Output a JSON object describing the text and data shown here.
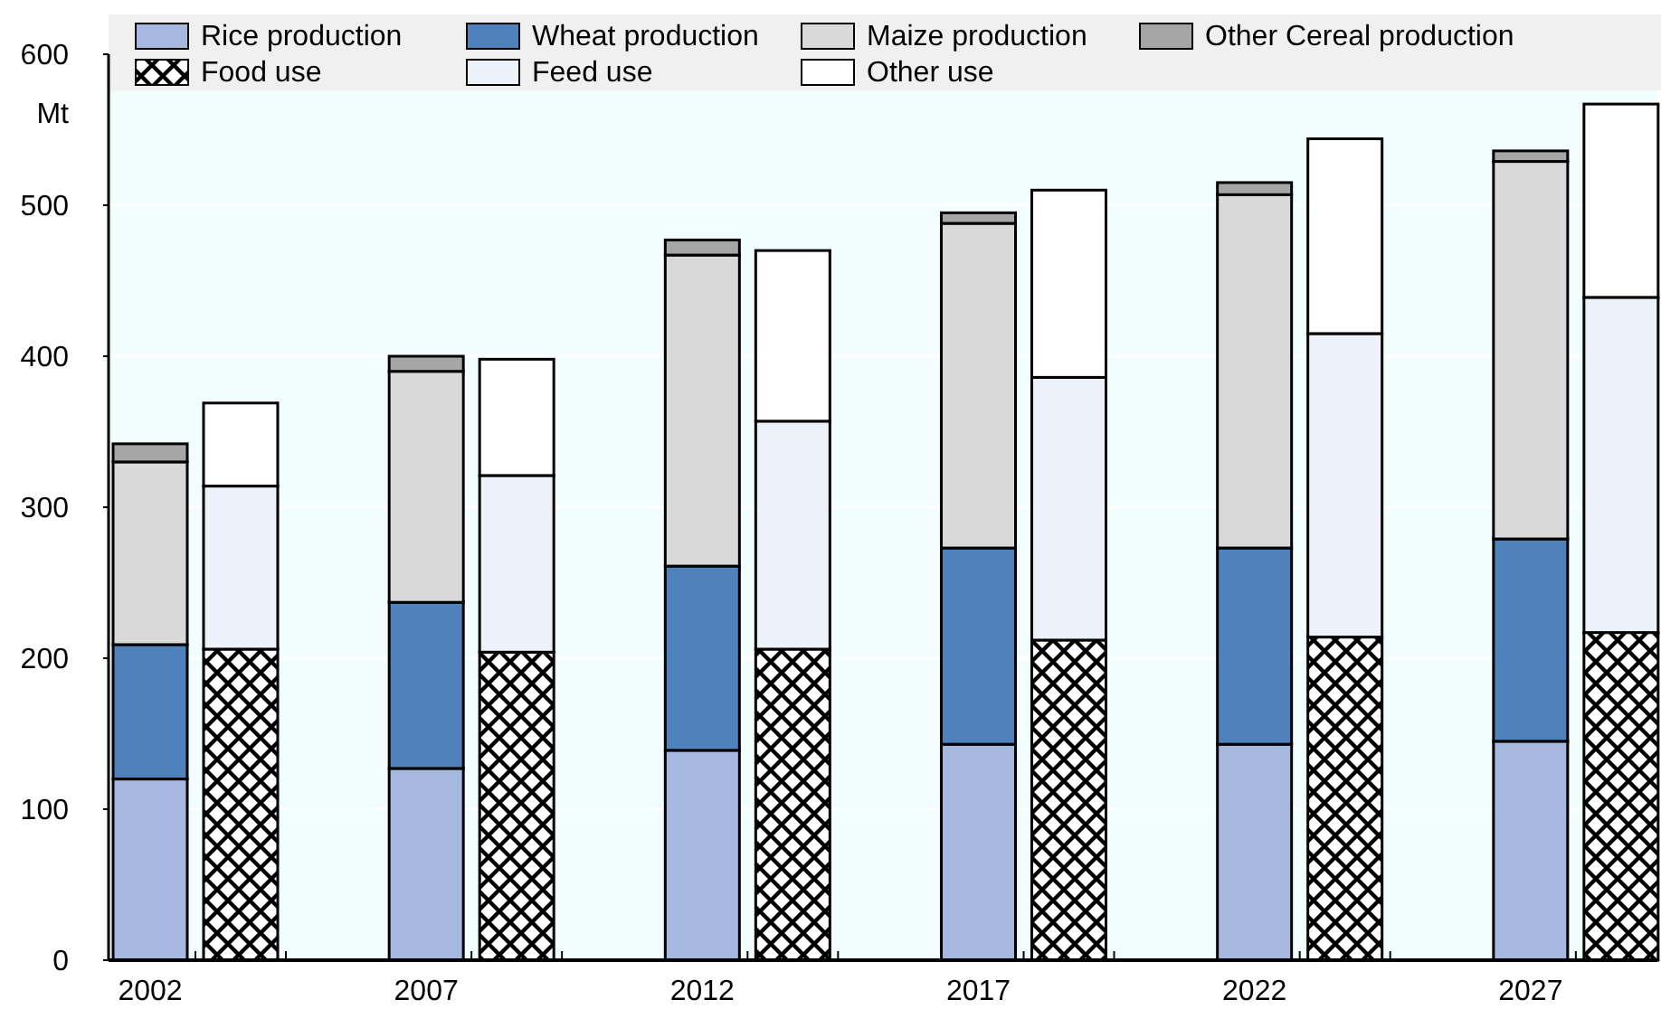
{
  "chart_data": {
    "type": "bar",
    "stacked": true,
    "ylabel": "Mt",
    "legend": "top",
    "grid": "y",
    "categories": [
      "2002",
      null,
      "2007",
      null,
      "2012",
      null,
      "2017",
      null,
      "2022",
      null,
      "2027",
      null
    ],
    "ylim": [
      0,
      600
    ],
    "yticks": [
      0,
      100,
      200,
      300,
      400,
      500,
      600
    ],
    "series": [
      {
        "name": "Rice production",
        "color": "#a7b8e0",
        "values": [
          120,
          null,
          127,
          null,
          139,
          null,
          143,
          null,
          143,
          null,
          145,
          null
        ]
      },
      {
        "name": "Wheat production",
        "color": "#4f81bd",
        "values": [
          89,
          null,
          110,
          null,
          122,
          null,
          130,
          null,
          130,
          null,
          134,
          null
        ]
      },
      {
        "name": "Maize production",
        "color": "#d9d9d9",
        "values": [
          121,
          null,
          153,
          null,
          206,
          null,
          215,
          null,
          234,
          null,
          250,
          null
        ]
      },
      {
        "name": "Other Cereal production",
        "color": "#a6a6a6",
        "values": [
          12,
          null,
          10,
          null,
          10,
          null,
          7,
          null,
          8,
          null,
          7,
          null
        ]
      },
      {
        "name": "Food use",
        "color": "#000000",
        "values": [
          null,
          206,
          null,
          204,
          null,
          206,
          null,
          212,
          null,
          214,
          null,
          217
        ]
      },
      {
        "name": "Feed use",
        "color": "#edf1f9",
        "values": [
          null,
          108,
          null,
          117,
          null,
          151,
          null,
          174,
          null,
          201,
          null,
          222
        ]
      },
      {
        "name": "Other use",
        "color": "#ffffff",
        "values": [
          null,
          55,
          null,
          77,
          null,
          113,
          null,
          124,
          null,
          129,
          null,
          128
        ]
      }
    ]
  }
}
